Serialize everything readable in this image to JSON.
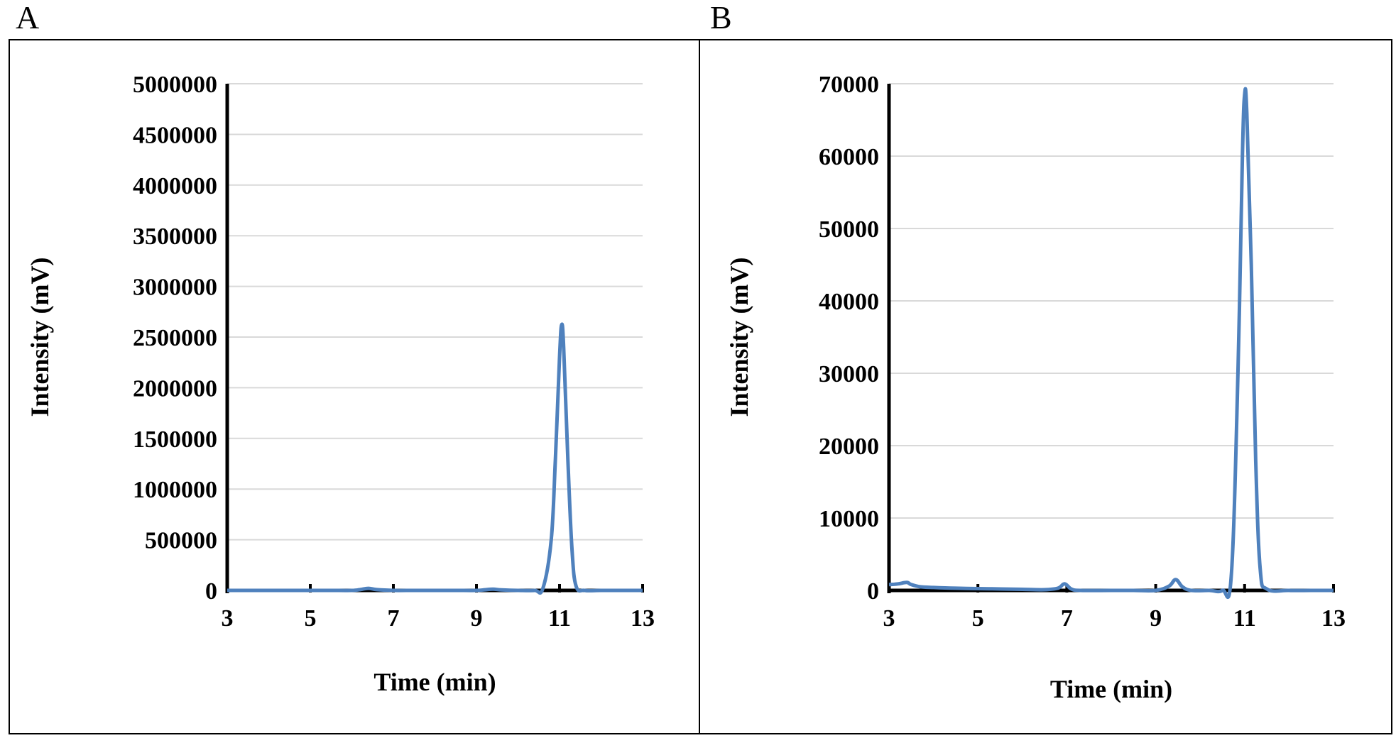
{
  "chart_data": [
    {
      "panel_label": "A",
      "type": "line",
      "xlabel": "Time (min)",
      "ylabel": "Intensity (mV)",
      "xlim": [
        3,
        13
      ],
      "ylim": [
        0,
        5000000
      ],
      "xticks": [
        "3",
        "5",
        "7",
        "9",
        "11",
        "13"
      ],
      "yticks": [
        "0",
        "500000",
        "1000000",
        "1500000",
        "2000000",
        "2500000",
        "3000000",
        "3500000",
        "4000000",
        "4500000",
        "5000000"
      ],
      "grid": true,
      "legend": "none",
      "line_color": "#4f81bd",
      "series": [
        {
          "x": [
            3,
            3.5,
            4,
            4.5,
            5,
            5.5,
            6,
            6.2,
            6.4,
            6.6,
            7,
            7.5,
            8,
            8.5,
            9,
            9.2,
            9.4,
            9.6,
            10,
            10.4,
            10.6,
            10.8,
            10.9,
            11.0,
            11.05,
            11.1,
            11.2,
            11.3,
            11.4,
            11.6,
            12,
            12.5,
            13
          ],
          "y": [
            0,
            0,
            0,
            0,
            0,
            0,
            0,
            8000,
            20000,
            8000,
            0,
            0,
            0,
            0,
            0,
            6000,
            12000,
            5000,
            0,
            0,
            20000,
            500000,
            1300000,
            2300000,
            2620000,
            2400000,
            1300000,
            400000,
            40000,
            0,
            0,
            0,
            0
          ]
        }
      ]
    },
    {
      "panel_label": "B",
      "type": "line",
      "xlabel": "Time (min)",
      "ylabel": "Intensity (mV)",
      "xlim": [
        3,
        13
      ],
      "ylim": [
        0,
        70000
      ],
      "xticks": [
        "3",
        "5",
        "7",
        "9",
        "11",
        "13"
      ],
      "yticks": [
        "0",
        "10000",
        "20000",
        "30000",
        "40000",
        "50000",
        "60000",
        "70000"
      ],
      "grid": true,
      "legend": "none",
      "line_color": "#4f81bd",
      "series": [
        {
          "x": [
            3,
            3.2,
            3.4,
            3.5,
            3.7,
            4,
            4.5,
            5,
            5.5,
            6,
            6.5,
            6.8,
            6.95,
            7.1,
            7.3,
            8,
            8.5,
            9,
            9.3,
            9.45,
            9.6,
            9.8,
            10.2,
            10.5,
            10.7,
            10.85,
            10.95,
            11.0,
            11.05,
            11.15,
            11.25,
            11.35,
            11.5,
            12,
            12.5,
            13
          ],
          "y": [
            800,
            900,
            1100,
            800,
            500,
            400,
            300,
            250,
            200,
            150,
            100,
            300,
            900,
            200,
            0,
            0,
            0,
            0,
            600,
            1500,
            500,
            0,
            0,
            0,
            2000,
            30000,
            60000,
            68500,
            66000,
            45000,
            18000,
            3000,
            200,
            0,
            0,
            0
          ]
        }
      ]
    }
  ]
}
